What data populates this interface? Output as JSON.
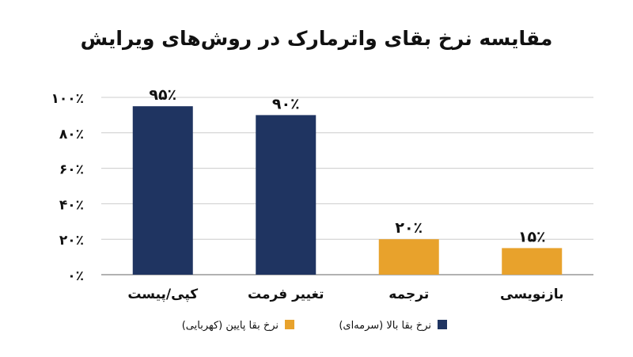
{
  "chart_data": {
    "type": "bar",
    "title": "مقایسه نرخ بقای واترمارک در روش‌های ویرایش",
    "categories": [
      "کپی/پیست",
      "تغییر فرمت",
      "ترجمه",
      "بازنویسی"
    ],
    "values": [
      95,
      90,
      20,
      15
    ],
    "value_labels": [
      "۹۵٪",
      "۹۰٪",
      "۲۰٪",
      "۱۵٪"
    ],
    "bar_groups": [
      "high",
      "high",
      "low",
      "low"
    ],
    "ylim": [
      0,
      100
    ],
    "yticks": [
      0,
      20,
      40,
      60,
      80,
      100
    ],
    "ytick_labels": [
      "۰٪",
      "۲۰٪",
      "۴۰٪",
      "۶۰٪",
      "۸۰٪",
      "۱۰۰٪"
    ],
    "grid": true,
    "legend_position": "bottom",
    "legend": [
      {
        "key": "high",
        "label": "نرخ بقا بالا (سرمه‌ای)",
        "color": "#1f3461"
      },
      {
        "key": "low",
        "label": "نرخ بقا پایین (کهربایی)",
        "color": "#e8a22c"
      }
    ]
  }
}
